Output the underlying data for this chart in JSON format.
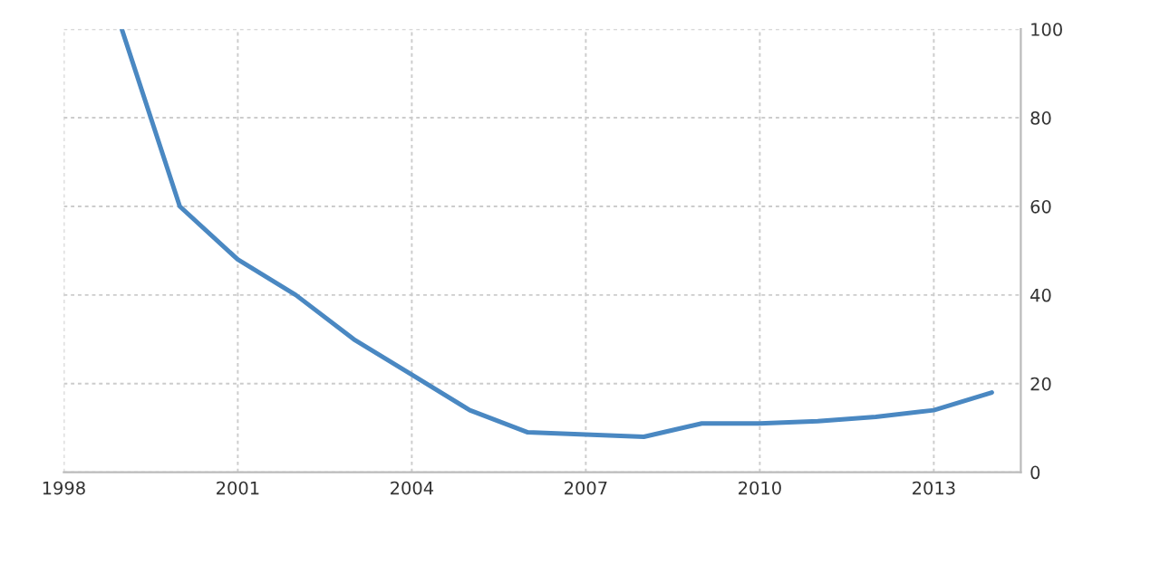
{
  "chart_data": {
    "type": "line",
    "x": [
      1999,
      2000,
      2001,
      2002,
      2003,
      2004,
      2005,
      2006,
      2007,
      2008,
      2009,
      2010,
      2011,
      2012,
      2013,
      2014
    ],
    "series": [
      {
        "color": "#4a88c2",
        "values": [
          100,
          60,
          48,
          40,
          30,
          22,
          14,
          9,
          8.5,
          8,
          11,
          11,
          11.5,
          12.5,
          14,
          18
        ]
      }
    ],
    "xlim": [
      1998,
      2014.5
    ],
    "xticks": [
      1998,
      2001,
      2004,
      2007,
      2010,
      2013
    ],
    "ylim": [
      0,
      100
    ],
    "yticks": [
      0,
      20,
      40,
      60,
      80,
      100
    ],
    "grid": true,
    "marker": "none",
    "line_style": "solid"
  }
}
